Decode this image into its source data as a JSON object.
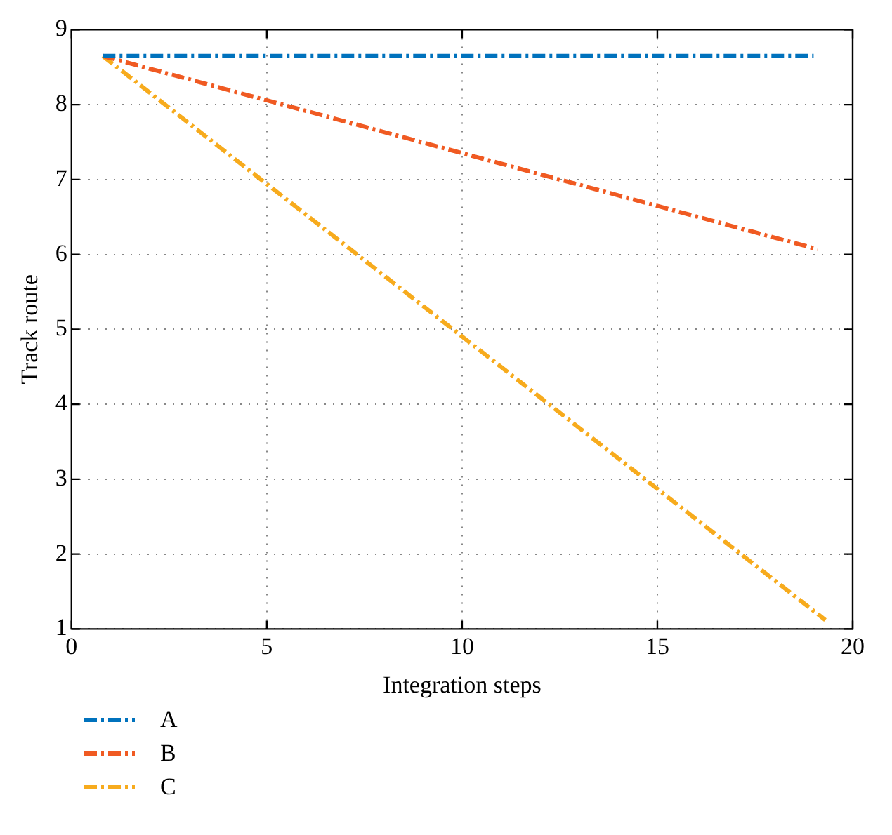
{
  "chart_data": {
    "type": "line",
    "xlabel": "Integration steps",
    "ylabel": "Track route",
    "series": [
      {
        "name": "A",
        "color": "#0072bd",
        "x": [
          0.8,
          19
        ],
        "values": [
          8.65,
          8.65
        ]
      },
      {
        "name": "B",
        "color": "#f05a22",
        "x": [
          0.8,
          19.1
        ],
        "values": [
          8.65,
          6.07
        ]
      },
      {
        "name": "C",
        "color": "#f7ab1d",
        "x": [
          0.8,
          19.3
        ],
        "values": [
          8.65,
          1.12
        ]
      }
    ],
    "xlim": [
      0,
      20
    ],
    "xticks": [
      0,
      5,
      10,
      15,
      20
    ],
    "ylim": [
      1,
      9
    ],
    "yticks": [
      1,
      2,
      3,
      4,
      5,
      6,
      7,
      8,
      9
    ],
    "grid": true,
    "legend": "bottom left",
    "line_style": "dashed",
    "marker": "none"
  }
}
